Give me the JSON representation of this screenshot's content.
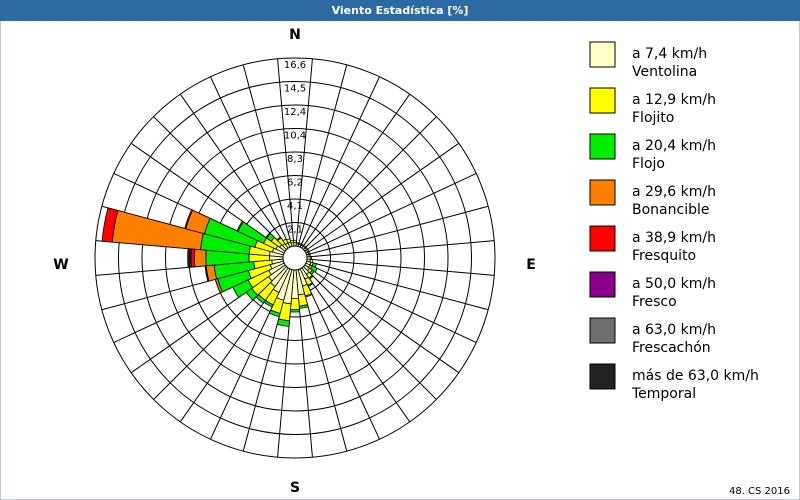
{
  "chart_data": {
    "type": "windrose",
    "title": "Viento Estadística [%]",
    "directions": [
      "N",
      "E",
      "S",
      "W"
    ],
    "rlim": [
      0,
      16.56
    ],
    "rticks": [
      {
        "value": 2.07,
        "label": "2,1"
      },
      {
        "value": 4.14,
        "label": "4,1"
      },
      {
        "value": 6.21,
        "label": "6,2"
      },
      {
        "value": 8.28,
        "label": "8,3"
      },
      {
        "value": 10.35,
        "label": "10,4"
      },
      {
        "value": 12.42,
        "label": "12,4"
      },
      {
        "value": 14.49,
        "label": "14,5"
      },
      {
        "value": 16.56,
        "label": "16,6"
      }
    ],
    "sectors": 36,
    "series": [
      {
        "range": "a 7,4 km/h",
        "name": "Ventolina",
        "color": "#ffffc8",
        "values": [
          0.3,
          0.2,
          0.2,
          0.2,
          0.2,
          0.2,
          0.2,
          0.2,
          0.2,
          0.3,
          0.3,
          0.4,
          0.4,
          0.5,
          0.7,
          1.0,
          1.5,
          2.2,
          2.5,
          3.0,
          2.8,
          2.3,
          2.0,
          1.8,
          1.5,
          1.2,
          1.0,
          1.2,
          1.2,
          1.0,
          0.8,
          0.6,
          0.5,
          0.4,
          0.4,
          0.3
        ]
      },
      {
        "range": "a 12,9 km/h",
        "name": "Flojito",
        "color": "#ffff00",
        "values": [
          0.2,
          0.1,
          0.1,
          0.1,
          0.1,
          0.1,
          0.1,
          0.1,
          0.1,
          0.1,
          0.2,
          0.2,
          0.2,
          0.3,
          0.4,
          0.6,
          0.9,
          1.0,
          1.0,
          1.5,
          1.2,
          1.2,
          1.5,
          1.8,
          2.0,
          2.0,
          1.6,
          1.8,
          1.8,
          1.6,
          1.2,
          0.9,
          0.6,
          0.4,
          0.3,
          0.2
        ]
      },
      {
        "range": "a 20,4 km/h",
        "name": "Flojo",
        "color": "#00ee00",
        "values": [
          0,
          0,
          0,
          0,
          0,
          0,
          0,
          0,
          0,
          0,
          0,
          0.3,
          0.5,
          0.2,
          0.1,
          0.1,
          0.1,
          0.2,
          0.2,
          0.5,
          0.3,
          0.2,
          0.3,
          0.6,
          1.5,
          2.8,
          3.5,
          3.8,
          4.3,
          4.6,
          2.5,
          0.5,
          0.1,
          0,
          0,
          0
        ]
      },
      {
        "range": "a 29,6 km/h",
        "name": "Bonancible",
        "color": "#ff8000",
        "values": [
          0,
          0,
          0,
          0,
          0,
          0,
          0,
          0,
          0,
          0,
          0,
          0,
          0,
          0,
          0,
          0,
          0,
          0,
          0,
          0,
          0,
          0,
          0,
          0,
          0,
          0.2,
          0.7,
          1.0,
          7.8,
          1.7,
          0.1,
          0,
          0,
          0,
          0,
          0
        ]
      },
      {
        "range": "a 38,9 km/h",
        "name": "Fresquito",
        "color": "#ff0000",
        "values": [
          0,
          0,
          0,
          0,
          0,
          0,
          0,
          0,
          0,
          0,
          0,
          0,
          0,
          0,
          0,
          0,
          0,
          0,
          0,
          0,
          0,
          0,
          0,
          0,
          0,
          0,
          0,
          0.3,
          0.9,
          0.1,
          0,
          0,
          0,
          0,
          0,
          0
        ]
      },
      {
        "range": "a 50,0 km/h",
        "name": "Fresco",
        "color": "#8b008b",
        "values": [
          0,
          0,
          0,
          0,
          0,
          0,
          0,
          0,
          0,
          0,
          0,
          0,
          0,
          0,
          0,
          0,
          0,
          0,
          0,
          0,
          0,
          0,
          0,
          0,
          0,
          0,
          0,
          0,
          0,
          0,
          0,
          0,
          0,
          0,
          0,
          0
        ]
      },
      {
        "range": "a 63,0 km/h",
        "name": "Frescachón",
        "color": "#6e6e6e",
        "values": [
          0,
          0,
          0,
          0,
          0,
          0,
          0,
          0,
          0,
          0,
          0,
          0,
          0,
          0,
          0,
          0,
          0,
          0,
          0,
          0,
          0,
          0,
          0,
          0,
          0,
          0,
          0,
          0.1,
          0,
          0,
          0,
          0,
          0,
          0,
          0,
          0
        ]
      },
      {
        "range": "más de 63,0 km/h",
        "name": "Temporal",
        "color": "#222222",
        "values": [
          0,
          0,
          0,
          0,
          0,
          0,
          0,
          0,
          0,
          0,
          0,
          0,
          0,
          0,
          0,
          0,
          0,
          0,
          0,
          0,
          0,
          0,
          0,
          0,
          0,
          0,
          0.1,
          0.2,
          0,
          0,
          0,
          0,
          0,
          0,
          0,
          0
        ]
      }
    ],
    "footer": "48. CS 2016"
  }
}
